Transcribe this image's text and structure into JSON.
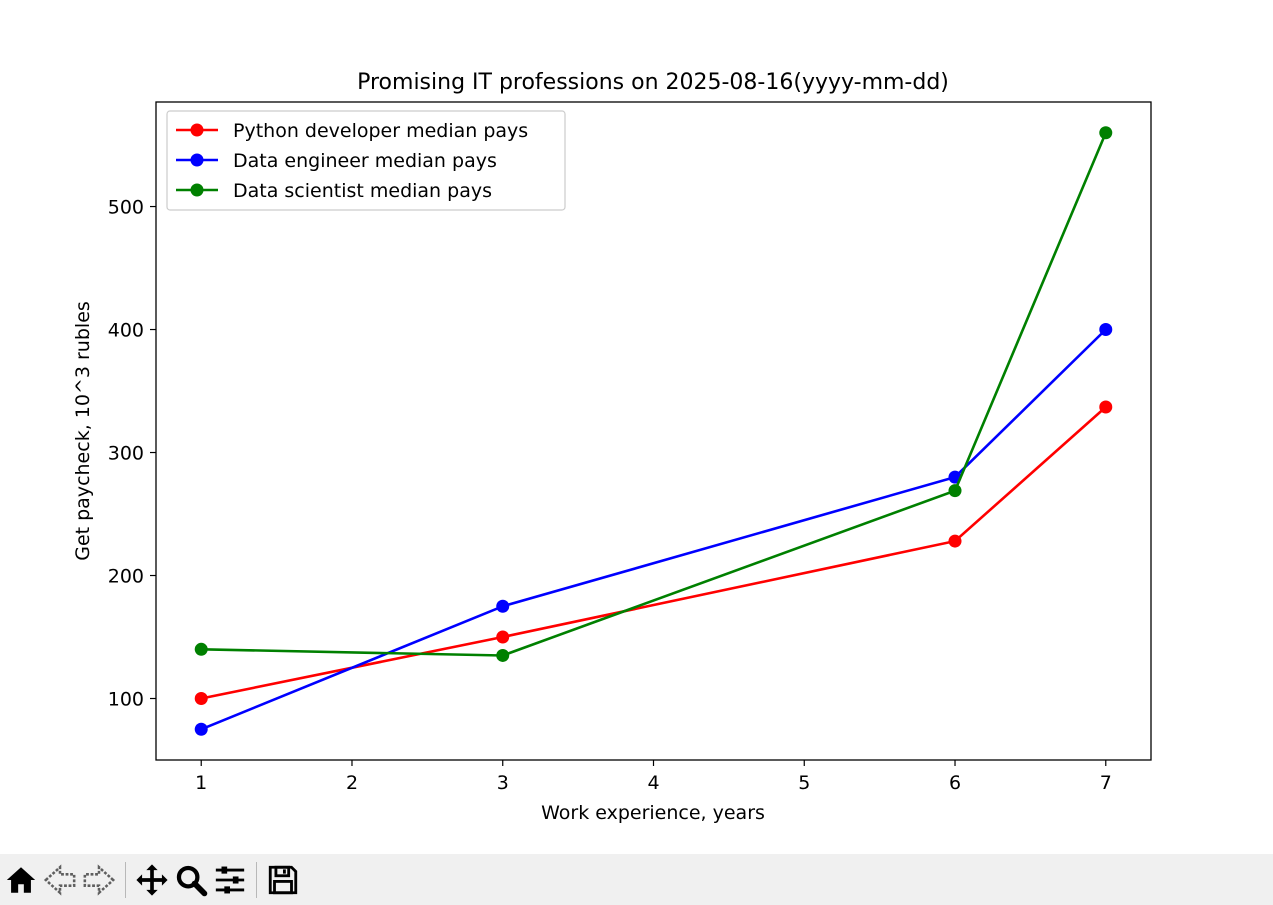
{
  "chart_data": {
    "type": "line",
    "title": "Promising IT professions on 2025-08-16(yyyy-mm-dd)",
    "xlabel": "Work experience, years",
    "ylabel": "Get paycheck, 10^3 rubles",
    "x": [
      1,
      3,
      6,
      7
    ],
    "xlim": [
      0.7,
      7.3
    ],
    "ylim": [
      50,
      585
    ],
    "xticks": [
      1,
      2,
      3,
      4,
      5,
      6,
      7
    ],
    "yticks": [
      100,
      200,
      300,
      400,
      500
    ],
    "grid": false,
    "legend_position": "upper-left",
    "series": [
      {
        "name": "Python developer median pays",
        "color": "#ff0000",
        "values": [
          100,
          150,
          228,
          337
        ]
      },
      {
        "name": "Data engineer median pays",
        "color": "#0000ff",
        "values": [
          75,
          175,
          280,
          400
        ]
      },
      {
        "name": "Data scientist median pays",
        "color": "#008000",
        "values": [
          140,
          135,
          269,
          560
        ]
      }
    ]
  },
  "toolbar": {
    "buttons": [
      {
        "icon": "home-icon",
        "enabled": true
      },
      {
        "icon": "back-arrow-icon",
        "enabled": false
      },
      {
        "icon": "forward-arrow-icon",
        "enabled": false
      },
      {
        "icon": "pan-icon",
        "enabled": true
      },
      {
        "icon": "zoom-icon",
        "enabled": true
      },
      {
        "icon": "configure-subplots-icon",
        "enabled": true
      },
      {
        "icon": "save-icon",
        "enabled": true
      }
    ]
  }
}
